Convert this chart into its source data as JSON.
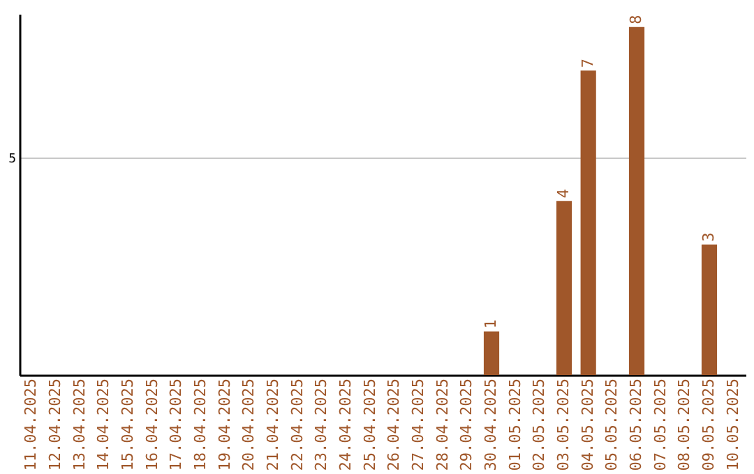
{
  "chart_data": {
    "type": "bar",
    "categories": [
      "11.04.2025",
      "12.04.2025",
      "13.04.2025",
      "14.04.2025",
      "15.04.2025",
      "16.04.2025",
      "17.04.2025",
      "18.04.2025",
      "19.04.2025",
      "20.04.2025",
      "21.04.2025",
      "22.04.2025",
      "23.04.2025",
      "24.04.2025",
      "25.04.2025",
      "26.04.2025",
      "27.04.2025",
      "28.04.2025",
      "29.04.2025",
      "30.04.2025",
      "01.05.2025",
      "02.05.2025",
      "03.05.2025",
      "04.05.2025",
      "05.05.2025",
      "06.05.2025",
      "07.05.2025",
      "08.05.2025",
      "09.05.2025",
      "10.05.2025"
    ],
    "values": [
      null,
      null,
      null,
      null,
      null,
      null,
      null,
      null,
      null,
      null,
      null,
      null,
      null,
      null,
      null,
      null,
      null,
      null,
      null,
      1,
      null,
      null,
      4,
      7,
      null,
      8,
      null,
      null,
      3,
      null
    ],
    "data_labels": true,
    "color": "#a0572a",
    "ylim": [
      0,
      8.3
    ],
    "yticks": [
      {
        "value": 0,
        "label": null
      },
      5
    ],
    "grid": "y"
  }
}
